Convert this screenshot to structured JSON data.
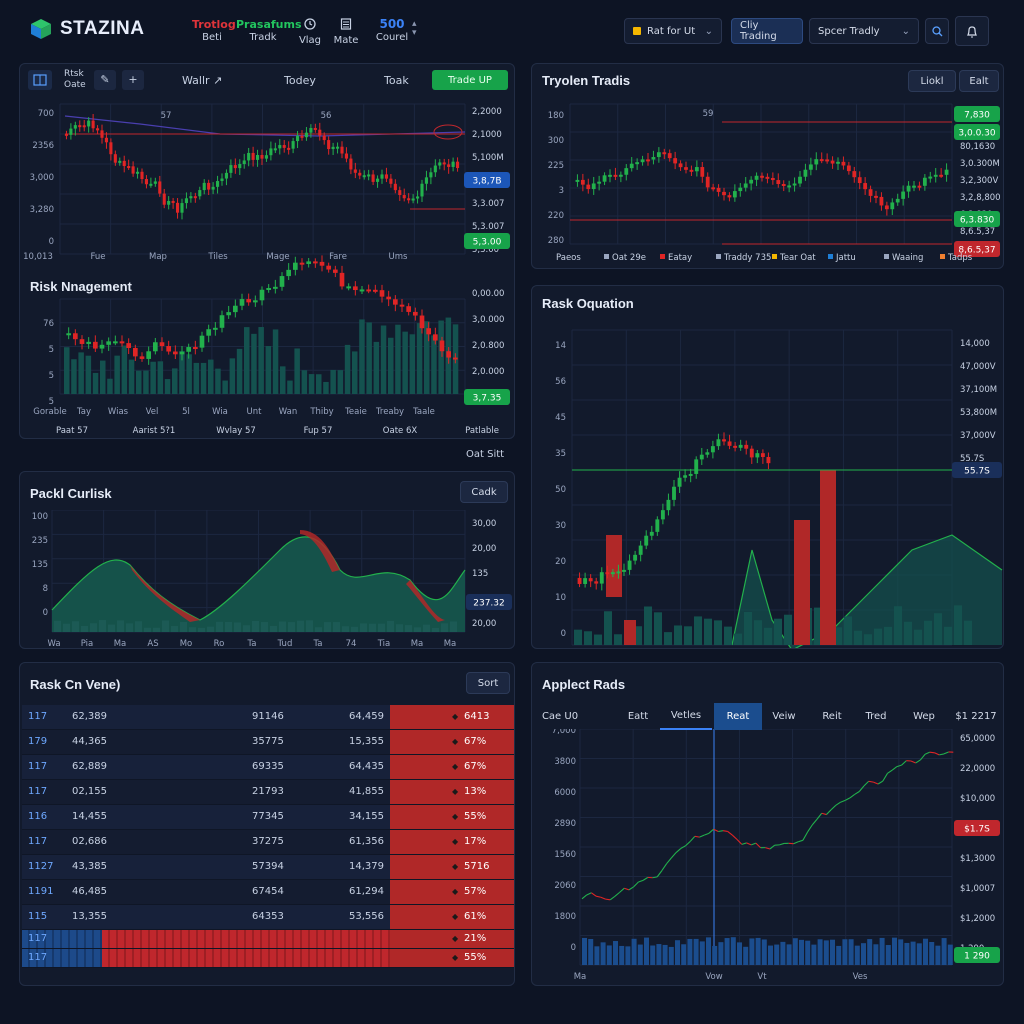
{
  "app": {
    "name": "STAZINA"
  },
  "nav": [
    {
      "title": "Trotlog",
      "sub": "Beti",
      "color": "#e0343a"
    },
    {
      "title": "Prasafums",
      "sub": "Tradk",
      "color": "#22c55e"
    },
    {
      "title": "",
      "sub": "Vlag",
      "icon": "clock-icon"
    },
    {
      "title": "",
      "sub": "Mate",
      "icon": "calculator-icon"
    },
    {
      "title": "500",
      "sub": "Courel",
      "color": "#3b82f6"
    }
  ],
  "controls": {
    "account": "Rat for Ut",
    "trading_btn": "Cliy Trading",
    "strategy": "Spcer Tradly"
  },
  "toolbar": {
    "label1": "Rtsk",
    "label2": "Oate",
    "f1": "Wallr",
    "f2": "Todey",
    "f3": "Toak",
    "action": "Trade UP"
  },
  "main_chart": {
    "y_left": [
      "700",
      "2356",
      "3,000",
      "3,280",
      "0"
    ],
    "y_right": [
      "2,2000",
      "2,1000",
      "5,100M",
      "3,8,7B",
      "3,3.007",
      "5,3.007",
      "5,3.00"
    ],
    "x": [
      "10,013",
      "Fue",
      "Map",
      "Tiles",
      "Mage",
      "Fare",
      "Ums"
    ],
    "top_labels": [
      "57",
      "56"
    ]
  },
  "risk_mgmt": {
    "title": "Risk Nnagement",
    "y_left": [
      "76",
      "5",
      "5",
      "5"
    ],
    "y_right": [
      "0,00.00",
      "3,0.000",
      "2,0.800",
      "2,0.000",
      "3,7.35"
    ],
    "x": [
      "Gorable",
      "Tay",
      "Wias",
      "Vel",
      "5l",
      "Wia",
      "Unt",
      "Wan",
      "Thiby",
      "Teaie",
      "Treaby",
      "Taale"
    ],
    "footer": [
      "Paat 57",
      "Aarist 5?1",
      "Wvlay 57",
      "Fup 57",
      "Oate 6X",
      "Patlable"
    ]
  },
  "oat_label": "Oat Sitt",
  "tryolen": {
    "title": "Tryolen Tradis",
    "btn1": "Liokl",
    "btn2": "Ealt",
    "y_left": [
      "180",
      "300",
      "225",
      "3",
      "220",
      "280"
    ],
    "y_right": [
      "7,830",
      "3,0.0.30",
      "80,1630",
      "3,0.300M",
      "3,2,300V",
      "3,2,8,800",
      "6,3.830",
      "8,6.5,37"
    ],
    "top_label": "59",
    "legend": [
      "Paeos",
      "Oat 29e",
      "Eatay",
      "Traddy 735",
      "Tear Oat",
      "Jattu",
      "Waaing",
      "Tadps"
    ]
  },
  "rask_equation": {
    "title": "Rask Oquation",
    "y_left": [
      "14",
      "56",
      "45",
      "35",
      "50",
      "30",
      "20",
      "10",
      "0"
    ],
    "y_right": [
      "14,000",
      "47,000V",
      "37,100M",
      "53,800M",
      "37,000V",
      "55.7S"
    ]
  },
  "packl": {
    "title": "Packl Curlisk",
    "btn": "Cadk",
    "y_left": [
      "100",
      "235",
      "135",
      "8",
      "0"
    ],
    "y_right": [
      "30,00",
      "20,00",
      "135",
      "237.32",
      "20,00"
    ],
    "x": [
      "Wa",
      "Pia",
      "Ma",
      "AS",
      "Mo",
      "Ro",
      "Ta",
      "Tud",
      "Ta",
      "74",
      "Tia",
      "Ma",
      "Ma"
    ]
  },
  "rask_cn": {
    "title": "Rask Cn Vene)",
    "btn": "Sort",
    "rows": [
      [
        "117",
        "62,389",
        "91146",
        "64,459",
        "6413"
      ],
      [
        "179",
        "44,365",
        "35775",
        "15,355",
        "67%"
      ],
      [
        "117",
        "62,889",
        "69335",
        "64,435",
        "67%"
      ],
      [
        "117",
        "02,155",
        "21793",
        "41,855",
        "13%"
      ],
      [
        "116",
        "14,455",
        "77345",
        "34,155",
        "55%"
      ],
      [
        "117",
        "02,686",
        "37275",
        "61,356",
        "17%"
      ],
      [
        "1127",
        "43,385",
        "57394",
        "14,379",
        "5716"
      ],
      [
        "1191",
        "46,485",
        "67454",
        "61,294",
        "57%"
      ],
      [
        "115",
        "13,355",
        "64353",
        "53,556",
        "61%"
      ],
      [
        "117",
        "",
        "",
        "",
        "21%"
      ],
      [
        "117",
        "",
        "",
        "",
        "55%"
      ]
    ]
  },
  "applect": {
    "title": "Applect Rads",
    "tabs": [
      "Cae U0",
      "Eatt",
      "Vetles",
      "Reat",
      "Veiw",
      "Reit",
      "Tred",
      "Wep",
      "$1 2217"
    ],
    "active_tab": 3,
    "y_left": [
      "7,000",
      "3800",
      "6000",
      "2890",
      "1560",
      "2060",
      "1800",
      "0"
    ],
    "y_right": [
      "65,0000",
      "22,0000",
      "$10,000",
      "$1.7S",
      "$1,3000",
      "$1,0007",
      "$1,2000",
      "1 290"
    ],
    "x": [
      "Ma",
      "Vow",
      "Vt",
      "Ves"
    ]
  }
}
